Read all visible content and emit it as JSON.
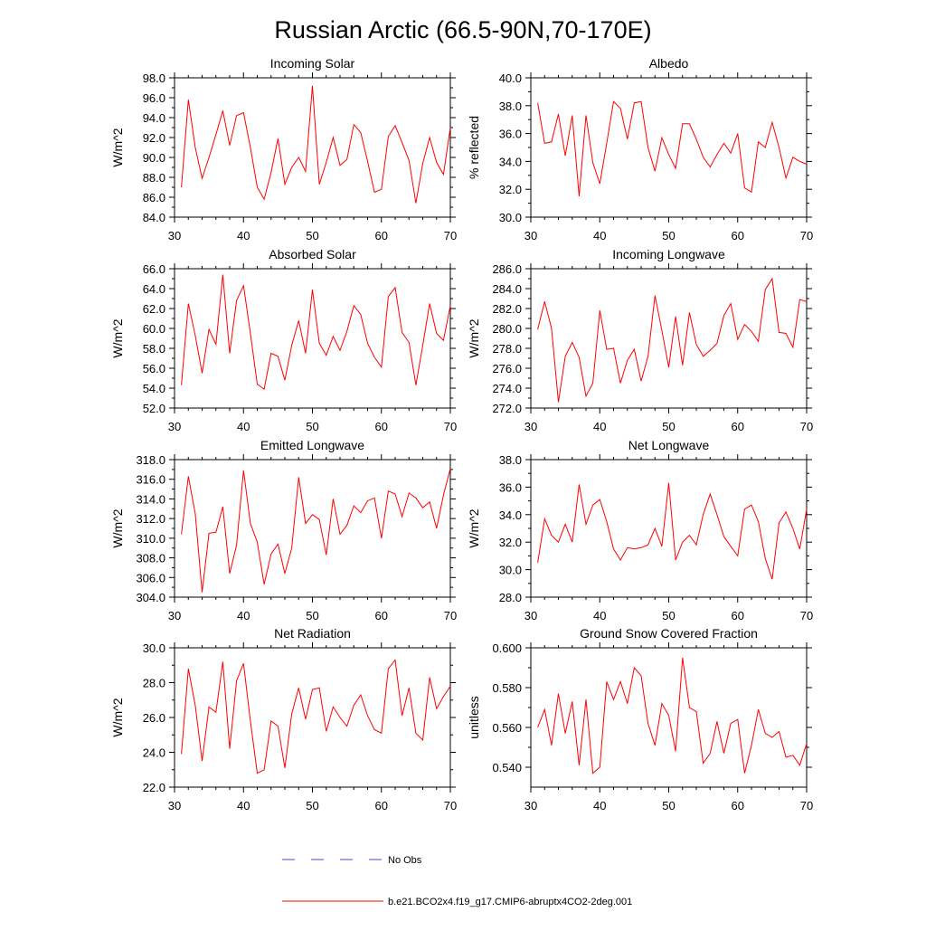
{
  "title": "Russian Arctic (66.5-90N,70-170E)",
  "colors": {
    "series": "#ff0000",
    "obs": "#4a4ad6",
    "axis": "#000000"
  },
  "legend": {
    "obs_label": "No Obs",
    "model_label": "b.e21.BCO2x4.f19_g17.CMIP6-abruptx4CO2-2deg.001"
  },
  "chart_data": [
    {
      "type": "line",
      "title": "Incoming Solar",
      "xlabel": "",
      "ylabel": "W/m^2",
      "xlim": [
        30,
        70
      ],
      "ylim": [
        84,
        98
      ],
      "xticks": [
        30,
        40,
        50,
        60,
        70
      ],
      "yticks": [
        84,
        86,
        88,
        90,
        92,
        94,
        96,
        98
      ],
      "x_start": 31,
      "values": [
        87.0,
        95.8,
        91.0,
        87.9,
        90.0,
        92.3,
        94.7,
        91.2,
        94.2,
        94.5,
        91.0,
        87.0,
        85.8,
        88.5,
        91.9,
        87.3,
        89.0,
        90.0,
        88.6,
        97.2,
        87.3,
        89.5,
        92.0,
        89.2,
        89.8,
        93.3,
        92.5,
        89.6,
        86.5,
        86.8,
        92.1,
        93.2,
        91.5,
        89.7,
        85.4,
        89.4,
        92.0,
        89.5,
        88.3,
        93.0
      ]
    },
    {
      "type": "line",
      "title": "Albedo",
      "xlabel": "",
      "ylabel": "% reflected",
      "xlim": [
        30,
        70
      ],
      "ylim": [
        30,
        40
      ],
      "xticks": [
        30,
        40,
        50,
        60,
        70
      ],
      "yticks": [
        30,
        32,
        34,
        36,
        38,
        40
      ],
      "x_start": 31,
      "values": [
        38.2,
        35.3,
        35.4,
        37.4,
        34.4,
        37.3,
        31.5,
        37.3,
        33.9,
        32.4,
        35.3,
        38.3,
        37.8,
        35.6,
        38.2,
        38.3,
        35.0,
        33.3,
        35.7,
        34.5,
        33.5,
        36.7,
        36.7,
        35.6,
        34.3,
        33.6,
        34.5,
        35.3,
        34.6,
        36.0,
        32.1,
        31.8,
        35.4,
        35.0,
        36.8,
        35.0,
        32.8,
        34.3,
        34.0,
        33.8
      ]
    },
    {
      "type": "line",
      "title": "Absorbed Solar",
      "xlabel": "",
      "ylabel": "W/m^2",
      "xlim": [
        30,
        70
      ],
      "ylim": [
        52,
        66
      ],
      "xticks": [
        30,
        40,
        50,
        60,
        70
      ],
      "yticks": [
        52,
        54,
        56,
        58,
        60,
        62,
        64,
        66
      ],
      "x_start": 31,
      "values": [
        54.3,
        62.5,
        59.3,
        55.5,
        59.9,
        58.4,
        65.4,
        57.5,
        62.8,
        64.3,
        59.5,
        54.4,
        53.9,
        57.5,
        57.2,
        54.8,
        58.3,
        60.8,
        57.5,
        63.9,
        58.5,
        57.3,
        59.2,
        57.8,
        59.7,
        62.3,
        61.4,
        58.5,
        57.1,
        56.1,
        63.2,
        64.1,
        59.6,
        58.6,
        54.3,
        58.3,
        62.5,
        59.5,
        58.8,
        62.3
      ]
    },
    {
      "type": "line",
      "title": "Incoming Longwave",
      "xlabel": "",
      "ylabel": "W/m^2",
      "xlim": [
        30,
        70
      ],
      "ylim": [
        272,
        286
      ],
      "xticks": [
        30,
        40,
        50,
        60,
        70
      ],
      "yticks": [
        272,
        274,
        276,
        278,
        280,
        282,
        284,
        286
      ],
      "x_start": 31,
      "values": [
        279.9,
        282.7,
        280.0,
        272.6,
        277.2,
        278.6,
        277.1,
        273.2,
        274.5,
        281.8,
        277.9,
        278.0,
        274.5,
        276.8,
        277.9,
        274.7,
        277.2,
        283.3,
        279.8,
        276.1,
        281.2,
        276.3,
        281.6,
        278.4,
        277.2,
        277.8,
        278.5,
        281.3,
        282.5,
        278.9,
        280.4,
        279.7,
        278.7,
        283.9,
        285.0,
        279.6,
        279.5,
        278.1,
        282.9,
        282.7
      ]
    },
    {
      "type": "line",
      "title": "Emitted Longwave",
      "xlabel": "",
      "ylabel": "W/m^2",
      "xlim": [
        30,
        70
      ],
      "ylim": [
        304,
        318
      ],
      "xticks": [
        30,
        40,
        50,
        60,
        70
      ],
      "yticks": [
        304,
        306,
        308,
        310,
        312,
        314,
        316,
        318
      ],
      "x_start": 31,
      "values": [
        310.4,
        316.3,
        312.5,
        304.5,
        310.5,
        310.6,
        313.2,
        306.4,
        309.3,
        316.9,
        311.5,
        309.6,
        305.3,
        308.4,
        309.4,
        306.4,
        309.0,
        316.2,
        311.5,
        312.4,
        311.9,
        308.3,
        314.0,
        310.4,
        311.3,
        313.3,
        312.6,
        313.8,
        314.1,
        310.0,
        314.8,
        314.5,
        312.2,
        314.6,
        314.1,
        313.1,
        313.7,
        311.0,
        314.4,
        317.1
      ]
    },
    {
      "type": "line",
      "title": "Net Longwave",
      "xlabel": "",
      "ylabel": "W/m^2",
      "xlim": [
        30,
        70
      ],
      "ylim": [
        28,
        38
      ],
      "xticks": [
        30,
        40,
        50,
        60,
        70
      ],
      "yticks": [
        28,
        30,
        32,
        34,
        36,
        38
      ],
      "x_start": 31,
      "values": [
        30.5,
        33.7,
        32.5,
        32.0,
        33.3,
        32.0,
        36.2,
        33.3,
        34.7,
        35.1,
        33.5,
        31.5,
        30.7,
        31.6,
        31.5,
        31.6,
        31.8,
        33.0,
        31.7,
        36.3,
        30.7,
        32.0,
        32.5,
        31.8,
        34.0,
        35.5,
        34.0,
        32.4,
        31.7,
        31.0,
        34.4,
        34.7,
        33.5,
        30.8,
        29.3,
        33.4,
        34.2,
        33.0,
        31.5,
        34.4
      ]
    },
    {
      "type": "line",
      "title": "Net Radiation",
      "xlabel": "",
      "ylabel": "W/m^2",
      "xlim": [
        30,
        70
      ],
      "ylim": [
        22,
        30
      ],
      "xticks": [
        30,
        40,
        50,
        60,
        70
      ],
      "yticks": [
        22,
        24,
        26,
        28,
        30
      ],
      "x_start": 31,
      "values": [
        23.9,
        28.8,
        26.7,
        23.5,
        26.6,
        26.3,
        29.2,
        24.2,
        28.1,
        29.1,
        25.8,
        22.8,
        23.0,
        25.8,
        25.5,
        23.1,
        26.2,
        27.7,
        25.9,
        27.6,
        27.7,
        25.2,
        26.6,
        26.0,
        25.5,
        26.7,
        27.3,
        26.1,
        25.3,
        25.1,
        28.8,
        29.3,
        26.1,
        27.7,
        25.1,
        24.7,
        28.3,
        26.5,
        27.2,
        27.8
      ]
    },
    {
      "type": "line",
      "title": "Ground Snow Covered Fraction",
      "xlabel": "",
      "ylabel": "unitless",
      "xlim": [
        30,
        70
      ],
      "ylim": [
        0.53,
        0.6
      ],
      "xticks": [
        30,
        40,
        50,
        60,
        70
      ],
      "yticks": [
        0.54,
        0.56,
        0.58,
        0.6
      ],
      "x_start": 31,
      "values": [
        0.56,
        0.569,
        0.551,
        0.577,
        0.557,
        0.573,
        0.541,
        0.574,
        0.537,
        0.54,
        0.583,
        0.574,
        0.583,
        0.572,
        0.59,
        0.586,
        0.562,
        0.551,
        0.572,
        0.566,
        0.548,
        0.595,
        0.57,
        0.568,
        0.542,
        0.547,
        0.563,
        0.547,
        0.562,
        0.564,
        0.537,
        0.551,
        0.569,
        0.557,
        0.555,
        0.558,
        0.545,
        0.546,
        0.541,
        0.552
      ]
    }
  ]
}
